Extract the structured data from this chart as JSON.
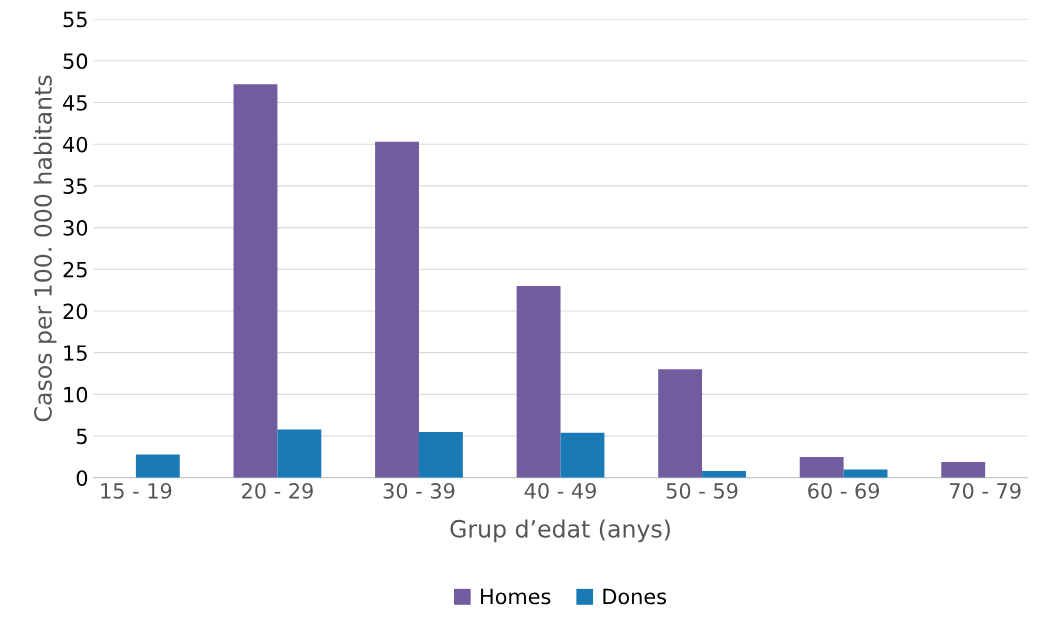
{
  "chart_data": {
    "type": "bar",
    "xlabel": "Grup d’edat (anys)",
    "ylabel": "Casos per 100. 000 habitants",
    "categories": [
      "15 - 19",
      "20 - 29",
      "30 - 39",
      "40 - 49",
      "50 - 59",
      "60 - 69",
      "70 - 79"
    ],
    "series": [
      {
        "name": "Homes",
        "color": "#705c9e",
        "values": [
          null,
          47.2,
          40.3,
          23.0,
          13.0,
          2.5,
          1.9
        ]
      },
      {
        "name": "Dones",
        "color": "#1a7ab5",
        "values": [
          2.8,
          5.8,
          5.5,
          5.4,
          0.8,
          1.0,
          null
        ]
      }
    ],
    "ylim": [
      0,
      55
    ],
    "yticks": [
      0,
      5,
      10,
      15,
      20,
      25,
      30,
      35,
      40,
      45,
      50,
      55
    ],
    "grid": "y",
    "legend": "bottom"
  }
}
